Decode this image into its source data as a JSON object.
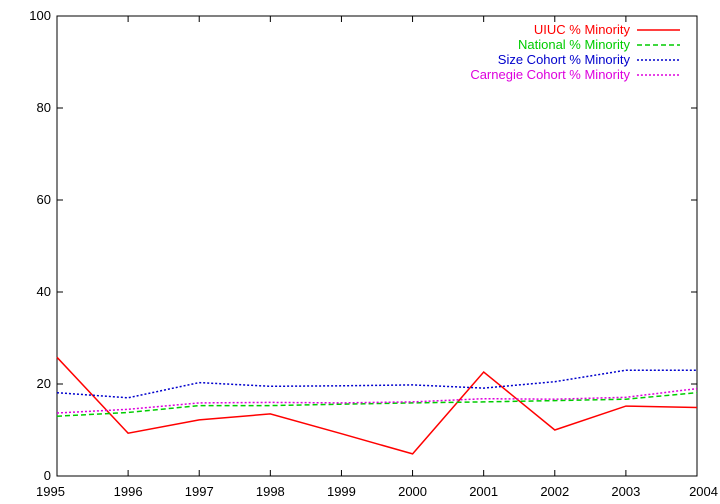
{
  "chart_data": {
    "type": "line",
    "title": "",
    "xlabel": "",
    "ylabel": "",
    "xlim": [
      1995,
      2004
    ],
    "ylim": [
      0,
      100
    ],
    "x_ticks": [
      1995,
      1996,
      1997,
      1998,
      1999,
      2000,
      2001,
      2002,
      2003,
      2004
    ],
    "y_ticks": [
      0,
      20,
      40,
      60,
      80,
      100
    ],
    "grid": false,
    "legend_position": "top-right",
    "x": [
      1995,
      1996,
      1997,
      1998,
      1999,
      2000,
      2001,
      2002,
      2003,
      2004
    ],
    "series": [
      {
        "name": "UIUC % Minority",
        "color": "#ff0000",
        "dash": "solid",
        "values": [
          25.8,
          9.3,
          12.2,
          13.5,
          9.2,
          4.8,
          22.6,
          10.0,
          15.2,
          14.9
        ]
      },
      {
        "name": "National % Minority",
        "color": "#00cc00",
        "dash": "dashed",
        "values": [
          13.0,
          13.8,
          15.3,
          15.3,
          15.6,
          15.9,
          16.1,
          16.4,
          16.7,
          18.1
        ]
      },
      {
        "name": "Size Cohort % Minority",
        "color": "#0000cc",
        "dash": "dotted",
        "values": [
          18.1,
          17.0,
          20.3,
          19.5,
          19.6,
          19.8,
          19.1,
          20.5,
          23.0,
          23.0
        ]
      },
      {
        "name": "Carnegie Cohort % Minority",
        "color": "#dd00dd",
        "dash": "dotted",
        "values": [
          13.7,
          14.5,
          15.9,
          16.0,
          15.9,
          16.1,
          16.8,
          16.7,
          17.1,
          19.0
        ]
      }
    ]
  }
}
